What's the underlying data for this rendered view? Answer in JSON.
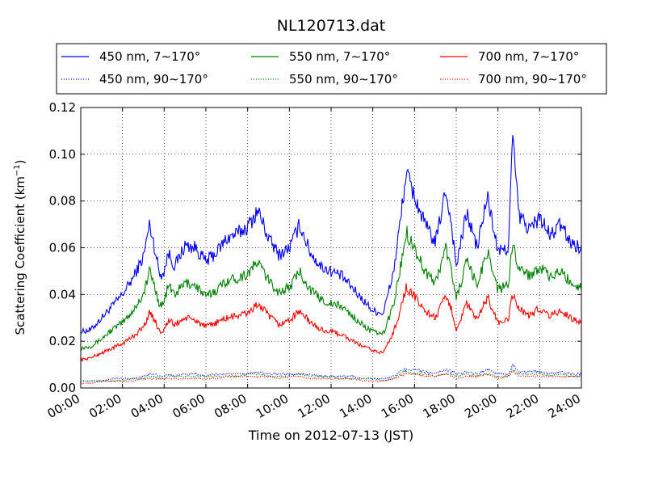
{
  "chart_data": {
    "type": "line",
    "title": "NL120713.dat",
    "xlabel": "Time on 2012-07-13 (JST)",
    "ylabel_main": "Scattering Coefficient (km",
    "ylabel_sup": "−1",
    "ylabel_close": ")",
    "x_unit": "hours",
    "xlim": [
      0,
      24
    ],
    "ylim": [
      0,
      0.12
    ],
    "grid": true,
    "legend_placement": "top, above plot",
    "x_ticks": [
      {
        "value": 0,
        "label": "00:00"
      },
      {
        "value": 2,
        "label": "02:00"
      },
      {
        "value": 4,
        "label": "04:00"
      },
      {
        "value": 6,
        "label": "06:00"
      },
      {
        "value": 8,
        "label": "08:00"
      },
      {
        "value": 10,
        "label": "10:00"
      },
      {
        "value": 12,
        "label": "12:00"
      },
      {
        "value": 14,
        "label": "14:00"
      },
      {
        "value": 16,
        "label": "16:00"
      },
      {
        "value": 18,
        "label": "18:00"
      },
      {
        "value": 20,
        "label": "20:00"
      },
      {
        "value": 22,
        "label": "22:00"
      },
      {
        "value": 24,
        "label": "24:00"
      }
    ],
    "y_ticks": [
      {
        "value": 0,
        "label": "0.00"
      },
      {
        "value": 0.02,
        "label": "0.02"
      },
      {
        "value": 0.04,
        "label": "0.04"
      },
      {
        "value": 0.06,
        "label": "0.06"
      },
      {
        "value": 0.08,
        "label": "0.08"
      },
      {
        "value": 0.1,
        "label": "0.10"
      },
      {
        "value": 0.12,
        "label": "0.12"
      }
    ],
    "x": [
      0,
      0.5,
      1,
      1.5,
      2,
      2.5,
      3,
      3.3,
      3.5,
      3.8,
      4,
      4.2,
      4.5,
      5,
      5.5,
      6,
      6.5,
      7,
      7.5,
      8,
      8.5,
      9,
      9.5,
      10,
      10.5,
      11,
      11.5,
      12,
      12.5,
      13,
      13.5,
      14,
      14.5,
      15,
      15.3,
      15.6,
      16,
      16.5,
      17,
      17.5,
      17.8,
      18,
      18.5,
      19,
      19.5,
      20,
      20.5,
      20.7,
      21,
      21.5,
      22,
      22.5,
      23,
      23.5,
      24
    ],
    "series": [
      {
        "name": "450 nm, 7∼170°",
        "color": "#0000ff",
        "style": "solid",
        "values": [
          0.024,
          0.025,
          0.03,
          0.035,
          0.04,
          0.047,
          0.056,
          0.07,
          0.062,
          0.048,
          0.05,
          0.058,
          0.052,
          0.061,
          0.06,
          0.054,
          0.058,
          0.064,
          0.066,
          0.069,
          0.076,
          0.064,
          0.057,
          0.06,
          0.07,
          0.058,
          0.052,
          0.05,
          0.048,
          0.043,
          0.038,
          0.033,
          0.032,
          0.05,
          0.07,
          0.092,
          0.082,
          0.07,
          0.062,
          0.085,
          0.068,
          0.052,
          0.075,
          0.06,
          0.082,
          0.058,
          0.06,
          0.108,
          0.074,
          0.068,
          0.073,
          0.065,
          0.07,
          0.062,
          0.06
        ]
      },
      {
        "name": "550 nm, 7∼170°",
        "color": "#008000",
        "style": "solid",
        "values": [
          0.017,
          0.018,
          0.021,
          0.025,
          0.028,
          0.033,
          0.04,
          0.05,
          0.045,
          0.035,
          0.037,
          0.044,
          0.04,
          0.045,
          0.044,
          0.039,
          0.042,
          0.046,
          0.047,
          0.049,
          0.054,
          0.046,
          0.041,
          0.043,
          0.05,
          0.042,
          0.038,
          0.036,
          0.035,
          0.031,
          0.027,
          0.024,
          0.023,
          0.036,
          0.05,
          0.067,
          0.06,
          0.05,
          0.045,
          0.06,
          0.049,
          0.038,
          0.054,
          0.044,
          0.059,
          0.042,
          0.044,
          0.062,
          0.052,
          0.048,
          0.052,
          0.047,
          0.05,
          0.045,
          0.043
        ]
      },
      {
        "name": "700 nm, 7∼170°",
        "color": "#ff0000",
        "style": "solid",
        "values": [
          0.012,
          0.013,
          0.015,
          0.017,
          0.019,
          0.022,
          0.026,
          0.032,
          0.03,
          0.024,
          0.025,
          0.029,
          0.027,
          0.03,
          0.029,
          0.026,
          0.028,
          0.03,
          0.031,
          0.032,
          0.036,
          0.031,
          0.027,
          0.029,
          0.033,
          0.028,
          0.025,
          0.024,
          0.023,
          0.02,
          0.018,
          0.016,
          0.015,
          0.024,
          0.033,
          0.043,
          0.039,
          0.033,
          0.03,
          0.039,
          0.033,
          0.025,
          0.036,
          0.029,
          0.039,
          0.028,
          0.029,
          0.04,
          0.034,
          0.031,
          0.034,
          0.031,
          0.033,
          0.03,
          0.028
        ]
      },
      {
        "name": "450 nm, 90∼170°",
        "color": "#0000ff",
        "style": "dotted",
        "values": [
          0.003,
          0.003,
          0.003,
          0.004,
          0.004,
          0.004,
          0.005,
          0.006,
          0.006,
          0.005,
          0.005,
          0.006,
          0.005,
          0.006,
          0.006,
          0.005,
          0.006,
          0.006,
          0.006,
          0.006,
          0.007,
          0.006,
          0.006,
          0.006,
          0.006,
          0.006,
          0.005,
          0.005,
          0.005,
          0.005,
          0.004,
          0.004,
          0.004,
          0.005,
          0.007,
          0.008,
          0.008,
          0.007,
          0.006,
          0.008,
          0.007,
          0.006,
          0.007,
          0.006,
          0.008,
          0.006,
          0.006,
          0.01,
          0.007,
          0.007,
          0.007,
          0.006,
          0.007,
          0.006,
          0.006
        ]
      },
      {
        "name": "550 nm, 90∼170°",
        "color": "#008000",
        "style": "dotted",
        "values": [
          0.003,
          0.003,
          0.003,
          0.003,
          0.003,
          0.004,
          0.004,
          0.005,
          0.005,
          0.004,
          0.004,
          0.005,
          0.005,
          0.005,
          0.005,
          0.005,
          0.005,
          0.005,
          0.005,
          0.006,
          0.006,
          0.005,
          0.005,
          0.005,
          0.006,
          0.005,
          0.005,
          0.005,
          0.004,
          0.004,
          0.004,
          0.004,
          0.003,
          0.004,
          0.006,
          0.007,
          0.006,
          0.006,
          0.005,
          0.006,
          0.006,
          0.005,
          0.006,
          0.005,
          0.006,
          0.005,
          0.005,
          0.008,
          0.006,
          0.006,
          0.006,
          0.005,
          0.006,
          0.005,
          0.005
        ]
      },
      {
        "name": "700 nm, 90∼170°",
        "color": "#ff0000",
        "style": "dotted",
        "values": [
          0.002,
          0.002,
          0.003,
          0.003,
          0.003,
          0.003,
          0.004,
          0.004,
          0.004,
          0.004,
          0.004,
          0.004,
          0.004,
          0.004,
          0.004,
          0.004,
          0.004,
          0.005,
          0.005,
          0.005,
          0.005,
          0.005,
          0.004,
          0.005,
          0.005,
          0.004,
          0.004,
          0.004,
          0.004,
          0.004,
          0.003,
          0.003,
          0.003,
          0.004,
          0.005,
          0.006,
          0.006,
          0.005,
          0.005,
          0.006,
          0.005,
          0.004,
          0.005,
          0.005,
          0.006,
          0.004,
          0.005,
          0.007,
          0.005,
          0.005,
          0.005,
          0.005,
          0.005,
          0.005,
          0.005
        ]
      }
    ]
  }
}
